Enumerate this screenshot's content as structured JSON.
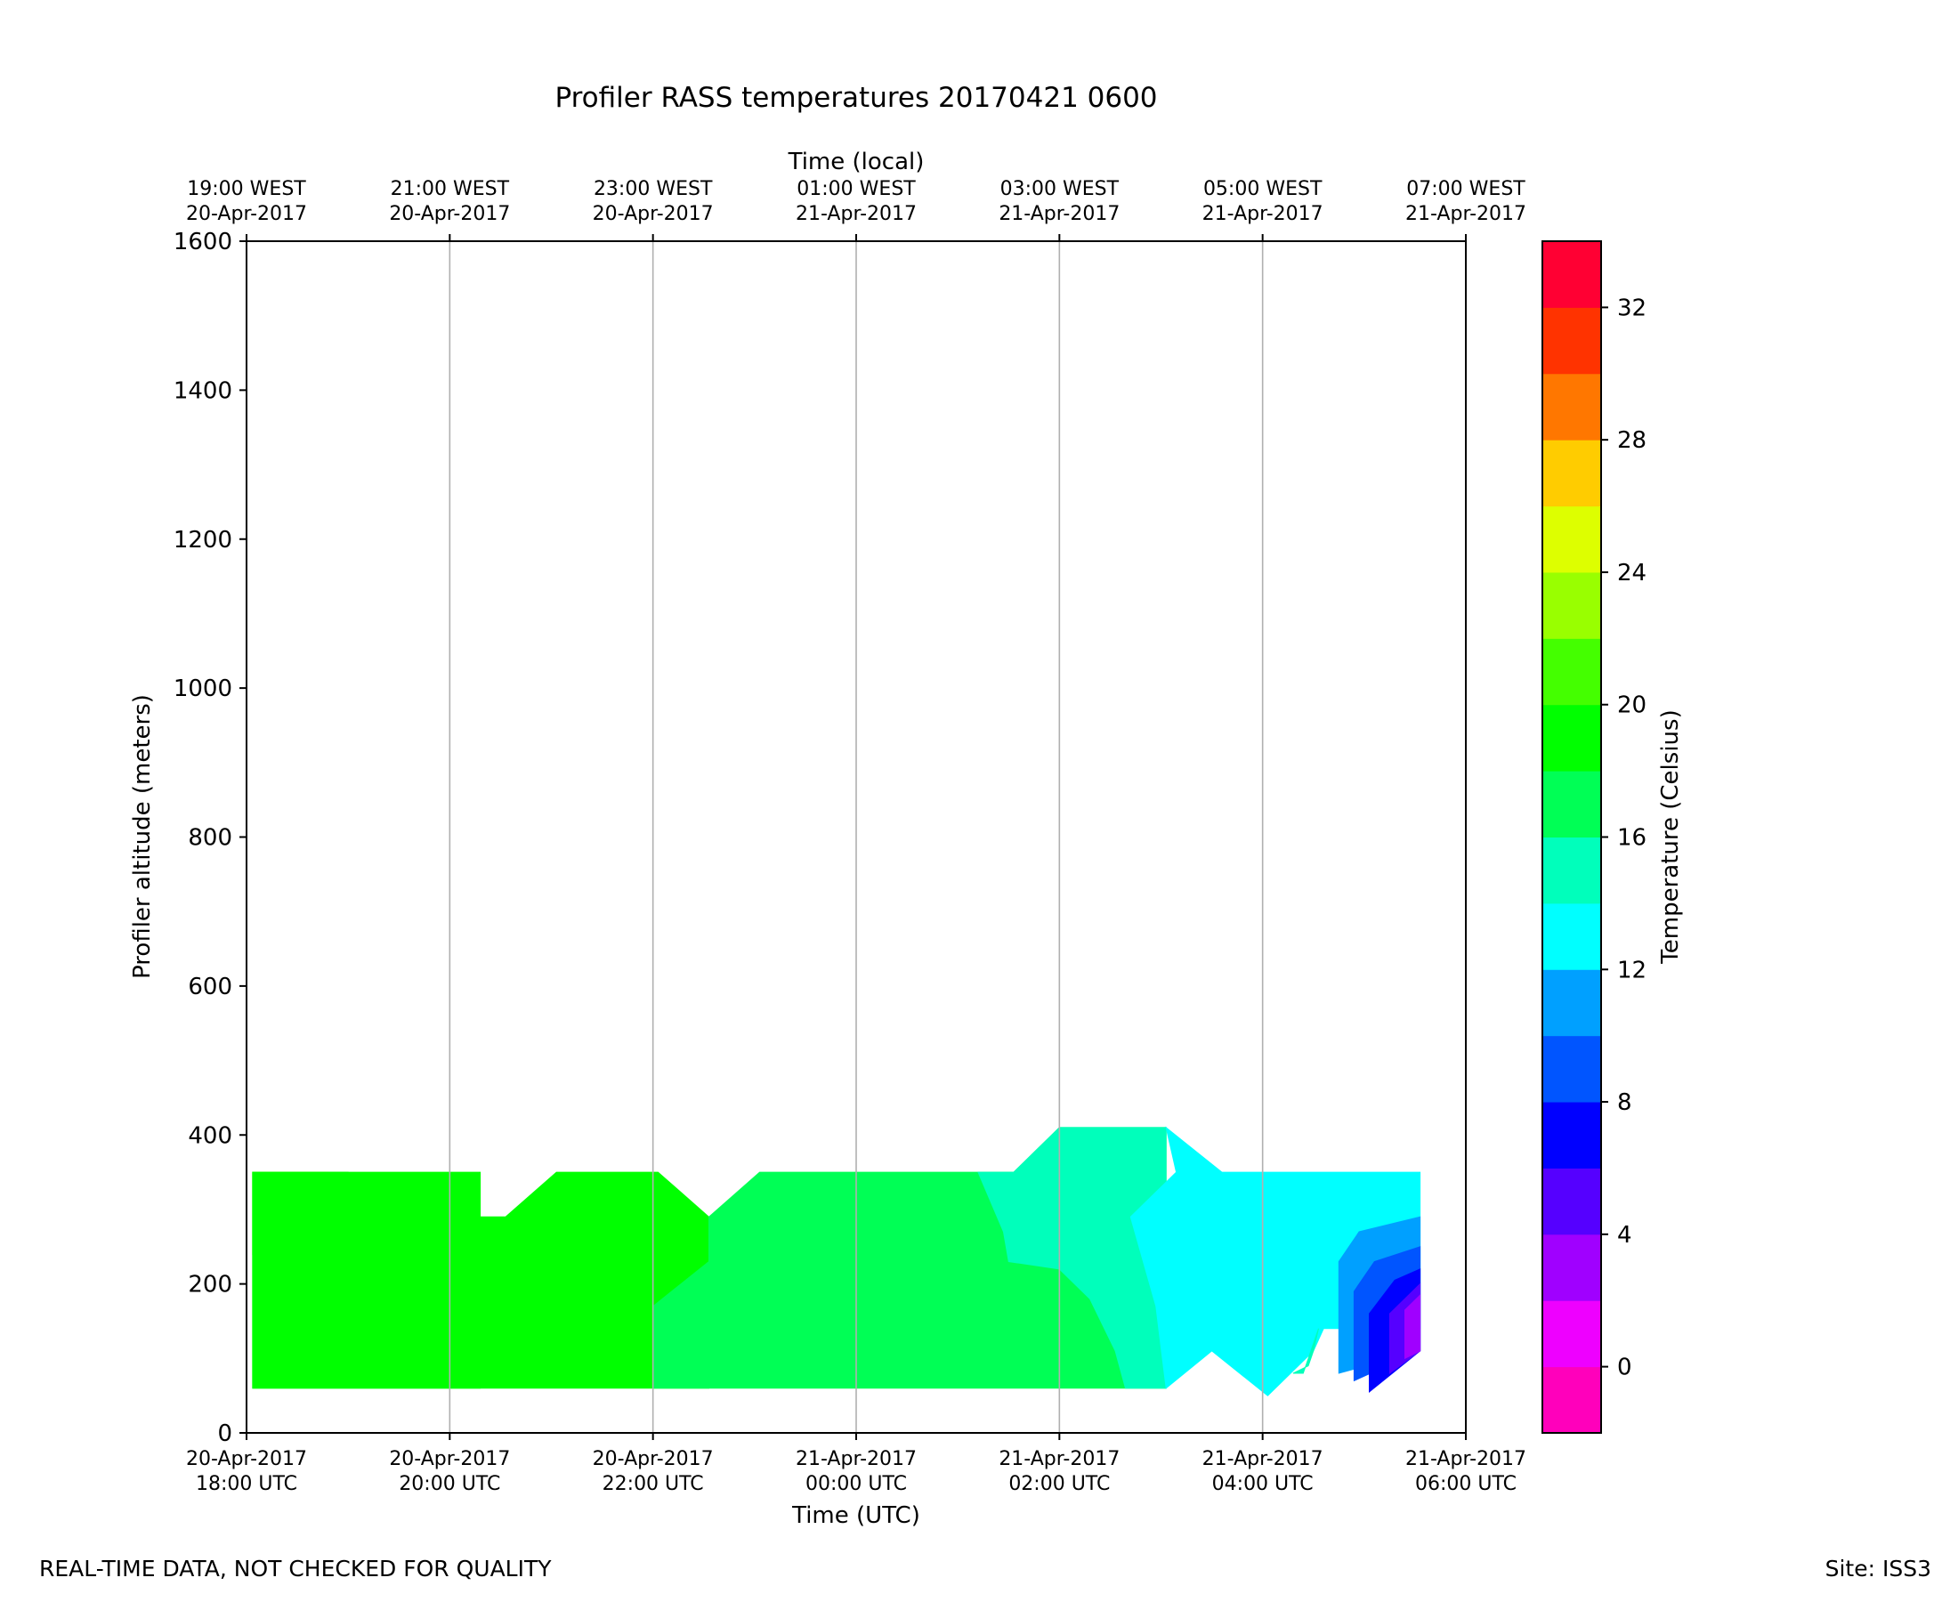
{
  "chart_data": {
    "type": "heatmap",
    "title": "Profiler RASS temperatures 20170421 0600",
    "xlabel": "Time (UTC)",
    "xlabel_top": "Time (local)",
    "ylabel": "Profiler altitude (meters)",
    "colorbar_label": "Temperature (Celsius)",
    "x_start": "2017-04-20T18:00Z",
    "x_range_hours": [
      0,
      12
    ],
    "ylim": [
      0,
      1600
    ],
    "yticks": [
      0,
      200,
      400,
      600,
      800,
      1000,
      1200,
      1400,
      1600
    ],
    "xticks_bottom": [
      {
        "hour": 0,
        "line1": "20-Apr-2017",
        "line2": "18:00 UTC"
      },
      {
        "hour": 2,
        "line1": "20-Apr-2017",
        "line2": "20:00 UTC"
      },
      {
        "hour": 4,
        "line1": "20-Apr-2017",
        "line2": "22:00 UTC"
      },
      {
        "hour": 6,
        "line1": "21-Apr-2017",
        "line2": "00:00 UTC"
      },
      {
        "hour": 8,
        "line1": "21-Apr-2017",
        "line2": "02:00 UTC"
      },
      {
        "hour": 10,
        "line1": "21-Apr-2017",
        "line2": "04:00 UTC"
      },
      {
        "hour": 12,
        "line1": "21-Apr-2017",
        "line2": "06:00 UTC"
      }
    ],
    "xticks_top": [
      {
        "hour": 0,
        "line1": "19:00 WEST",
        "line2": "20-Apr-2017"
      },
      {
        "hour": 2,
        "line1": "21:00 WEST",
        "line2": "20-Apr-2017"
      },
      {
        "hour": 4,
        "line1": "23:00 WEST",
        "line2": "20-Apr-2017"
      },
      {
        "hour": 6,
        "line1": "01:00 WEST",
        "line2": "21-Apr-2017"
      },
      {
        "hour": 8,
        "line1": "03:00 WEST",
        "line2": "21-Apr-2017"
      },
      {
        "hour": 10,
        "line1": "05:00 WEST",
        "line2": "21-Apr-2017"
      },
      {
        "hour": 12,
        "line1": "07:00 WEST",
        "line2": "21-Apr-2017"
      }
    ],
    "vertical_grid": true,
    "colorbar": {
      "range": [
        -2,
        34
      ],
      "bounds": [
        -2,
        0,
        2,
        4,
        6,
        8,
        10,
        12,
        14,
        16,
        18,
        20,
        22,
        24,
        26,
        28,
        30,
        32,
        34
      ],
      "colors": [
        "#ff00bb",
        "#ee00ff",
        "#a000ff",
        "#5500ff",
        "#0000ff",
        "#0055ff",
        "#00a0ff",
        "#00ffff",
        "#00ffbb",
        "#00ff55",
        "#00ff00",
        "#44ff00",
        "#99ff00",
        "#ddff00",
        "#ffcc00",
        "#ff7700",
        "#ff3300",
        "#ff0033"
      ],
      "ticks": [
        0,
        4,
        8,
        12,
        16,
        20,
        24,
        28,
        32
      ]
    },
    "regions": [
      {
        "temp_range": [
          18,
          20
        ],
        "color": "#00ff00",
        "points": [
          [
            0.06,
            60
          ],
          [
            0.06,
            350
          ],
          [
            2.3,
            350
          ],
          [
            2.3,
            60
          ]
        ]
      },
      {
        "temp_range": [
          20,
          22
        ],
        "color": "#44ff00",
        "points": [
          [
            0.06,
            240
          ],
          [
            0.06,
            350
          ],
          [
            0.8,
            350
          ],
          [
            0.58,
            290
          ]
        ]
      },
      {
        "temp_range": [
          18,
          20
        ],
        "color": "#00ff00",
        "points": [
          [
            0.06,
            60
          ],
          [
            0.06,
            350
          ],
          [
            1.0,
            350
          ],
          [
            1.55,
            290
          ],
          [
            2.55,
            290
          ],
          [
            3.05,
            350
          ],
          [
            4.05,
            350
          ],
          [
            4.55,
            290
          ],
          [
            4.55,
            60
          ]
        ]
      },
      {
        "temp_range": [
          16,
          18
        ],
        "color": "#00ff55",
        "points": [
          [
            4.0,
            60
          ],
          [
            4.0,
            170
          ],
          [
            4.55,
            230
          ],
          [
            4.55,
            290
          ],
          [
            5.05,
            350
          ],
          [
            7.2,
            350
          ],
          [
            7.55,
            350
          ],
          [
            8.0,
            410
          ],
          [
            9.05,
            410
          ],
          [
            9.05,
            60
          ]
        ]
      },
      {
        "temp_range": [
          14,
          16
        ],
        "color": "#00ffbb",
        "points": [
          [
            7.2,
            350
          ],
          [
            7.55,
            350
          ],
          [
            8.0,
            410
          ],
          [
            9.05,
            410
          ],
          [
            9.05,
            60
          ],
          [
            8.65,
            60
          ],
          [
            8.55,
            110
          ],
          [
            8.3,
            180
          ],
          [
            8.0,
            220
          ],
          [
            7.5,
            230
          ],
          [
            7.45,
            270
          ]
        ]
      },
      {
        "temp_range": [
          12,
          14
        ],
        "color": "#00ffff",
        "points": [
          [
            9.05,
            410
          ],
          [
            9.15,
            350
          ],
          [
            8.7,
            290
          ],
          [
            8.95,
            170
          ],
          [
            9.05,
            60
          ],
          [
            9.5,
            110
          ],
          [
            10.05,
            50
          ],
          [
            10.5,
            110
          ],
          [
            10.6,
            140
          ],
          [
            11.55,
            140
          ],
          [
            11.55,
            350
          ],
          [
            9.6,
            350
          ]
        ]
      },
      {
        "temp_range": [
          14,
          16
        ],
        "color": "#00ffbb",
        "points": [
          [
            10.3,
            80
          ],
          [
            10.45,
            90
          ],
          [
            10.5,
            110
          ],
          [
            10.55,
            140
          ],
          [
            10.4,
            80
          ]
        ]
      },
      {
        "temp_range": [
          10,
          12
        ],
        "color": "#00a0ff",
        "points": [
          [
            10.75,
            80
          ],
          [
            10.75,
            230
          ],
          [
            10.95,
            270
          ],
          [
            11.55,
            290
          ],
          [
            11.55,
            110
          ]
        ]
      },
      {
        "temp_range": [
          8,
          10
        ],
        "color": "#0055ff",
        "points": [
          [
            10.9,
            70
          ],
          [
            10.9,
            190
          ],
          [
            11.1,
            230
          ],
          [
            11.55,
            250
          ],
          [
            11.55,
            110
          ]
        ]
      },
      {
        "temp_range": [
          6,
          8
        ],
        "color": "#0000ff",
        "points": [
          [
            11.05,
            55
          ],
          [
            11.05,
            160
          ],
          [
            11.3,
            205
          ],
          [
            11.55,
            220
          ],
          [
            11.55,
            110
          ]
        ]
      },
      {
        "temp_range": [
          4,
          6
        ],
        "color": "#5500ff",
        "points": [
          [
            11.25,
            80
          ],
          [
            11.25,
            160
          ],
          [
            11.55,
            200
          ],
          [
            11.55,
            110
          ]
        ]
      },
      {
        "temp_range": [
          2,
          4
        ],
        "color": "#a000ff",
        "points": [
          [
            11.4,
            100
          ],
          [
            11.4,
            165
          ],
          [
            11.55,
            185
          ],
          [
            11.55,
            110
          ]
        ]
      }
    ]
  },
  "footer": {
    "left": "REAL-TIME DATA, NOT CHECKED FOR QUALITY",
    "right": "Site: ISS3"
  }
}
